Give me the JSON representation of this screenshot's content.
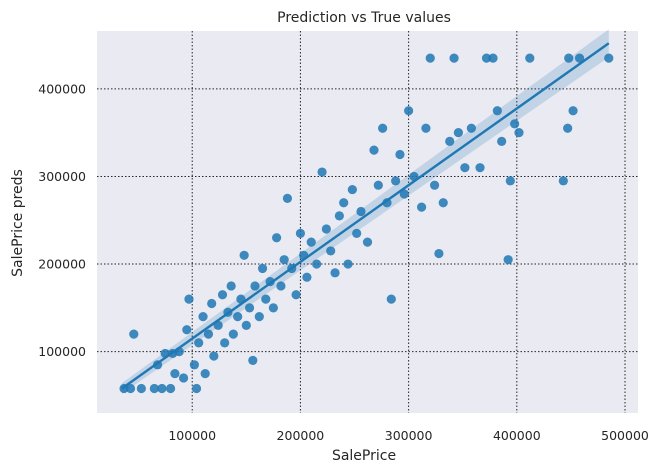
{
  "chart_data": {
    "type": "scatter",
    "title": "Prediction vs True values",
    "xlabel": "SalePrice",
    "ylabel": "SalePrice preds",
    "xlim": [
      12000,
      512000
    ],
    "ylim": [
      30000,
      466000
    ],
    "xticks": [
      100000,
      200000,
      300000,
      400000,
      500000
    ],
    "xtick_labels": [
      "100000",
      "200000",
      "300000",
      "400000",
      "500000"
    ],
    "yticks": [
      100000,
      200000,
      300000,
      400000
    ],
    "ytick_labels": [
      "100000",
      "200000",
      "300000",
      "400000"
    ],
    "grid": true,
    "background": "#eaeaf2",
    "point_color": "#1f77b4",
    "regression": {
      "x": [
        35000,
        485000
      ],
      "y": [
        58000,
        452000
      ],
      "ci_upper": [
        64000,
        468000
      ],
      "ci_lower": [
        52000,
        436000
      ],
      "color": "#1f77b4"
    },
    "series": [
      {
        "points": [
          [
            37000,
            58000
          ],
          [
            43000,
            58000
          ],
          [
            46000,
            120000
          ],
          [
            53000,
            58000
          ],
          [
            65000,
            58000
          ],
          [
            68000,
            85000
          ],
          [
            72000,
            58000
          ],
          [
            75000,
            98000
          ],
          [
            80000,
            58000
          ],
          [
            82000,
            98000
          ],
          [
            84000,
            75000
          ],
          [
            88000,
            100000
          ],
          [
            92000,
            70000
          ],
          [
            95000,
            125000
          ],
          [
            97000,
            160000
          ],
          [
            102000,
            85000
          ],
          [
            104000,
            58000
          ],
          [
            106000,
            110000
          ],
          [
            110000,
            140000
          ],
          [
            112000,
            75000
          ],
          [
            115000,
            120000
          ],
          [
            118000,
            155000
          ],
          [
            120000,
            95000
          ],
          [
            124000,
            130000
          ],
          [
            128000,
            165000
          ],
          [
            130000,
            110000
          ],
          [
            133000,
            145000
          ],
          [
            136000,
            175000
          ],
          [
            138000,
            120000
          ],
          [
            142000,
            140000
          ],
          [
            145000,
            160000
          ],
          [
            148000,
            210000
          ],
          [
            150000,
            130000
          ],
          [
            153000,
            150000
          ],
          [
            156000,
            90000
          ],
          [
            158000,
            175000
          ],
          [
            162000,
            140000
          ],
          [
            165000,
            195000
          ],
          [
            168000,
            160000
          ],
          [
            172000,
            180000
          ],
          [
            175000,
            150000
          ],
          [
            178000,
            230000
          ],
          [
            182000,
            175000
          ],
          [
            185000,
            205000
          ],
          [
            188000,
            275000
          ],
          [
            192000,
            195000
          ],
          [
            196000,
            165000
          ],
          [
            200000,
            235000
          ],
          [
            203000,
            210000
          ],
          [
            206000,
            185000
          ],
          [
            210000,
            225000
          ],
          [
            215000,
            200000
          ],
          [
            220000,
            305000
          ],
          [
            224000,
            240000
          ],
          [
            228000,
            215000
          ],
          [
            232000,
            190000
          ],
          [
            236000,
            255000
          ],
          [
            240000,
            270000
          ],
          [
            244000,
            200000
          ],
          [
            248000,
            285000
          ],
          [
            252000,
            235000
          ],
          [
            256000,
            260000
          ],
          [
            262000,
            225000
          ],
          [
            268000,
            330000
          ],
          [
            272000,
            290000
          ],
          [
            276000,
            355000
          ],
          [
            280000,
            270000
          ],
          [
            284000,
            160000
          ],
          [
            288000,
            295000
          ],
          [
            292000,
            325000
          ],
          [
            296000,
            280000
          ],
          [
            300000,
            375000
          ],
          [
            305000,
            300000
          ],
          [
            312000,
            265000
          ],
          [
            316000,
            355000
          ],
          [
            320000,
            435000
          ],
          [
            324000,
            290000
          ],
          [
            328000,
            212000
          ],
          [
            332000,
            270000
          ],
          [
            338000,
            340000
          ],
          [
            342000,
            435000
          ],
          [
            346000,
            350000
          ],
          [
            352000,
            310000
          ],
          [
            358000,
            355000
          ],
          [
            366000,
            310000
          ],
          [
            372000,
            435000
          ],
          [
            378000,
            435000
          ],
          [
            382000,
            375000
          ],
          [
            386000,
            340000
          ],
          [
            392000,
            205000
          ],
          [
            394000,
            295000
          ],
          [
            398000,
            360000
          ],
          [
            402000,
            350000
          ],
          [
            412000,
            435000
          ],
          [
            443000,
            295000
          ],
          [
            447000,
            355000
          ],
          [
            448000,
            435000
          ],
          [
            452000,
            375000
          ],
          [
            458000,
            435000
          ],
          [
            485000,
            435000
          ]
        ]
      }
    ]
  }
}
